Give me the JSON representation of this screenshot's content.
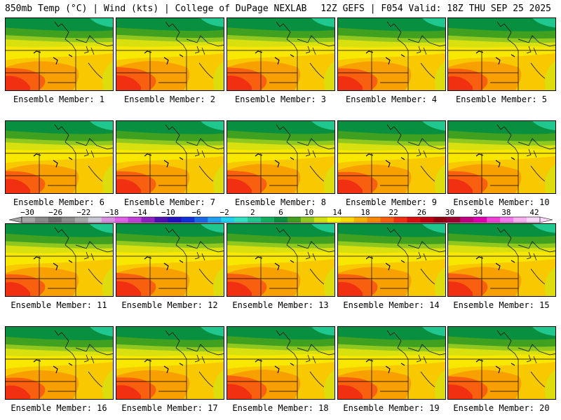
{
  "header": {
    "left_title": "850mb Temp (°C) | Wind (kts) | College of DuPage NEXLAB",
    "right_title": "12Z GEFS | F054 Valid: 18Z THU SEP 25 2025"
  },
  "members": [
    {
      "label": "Ensemble Member: 1",
      "warmth": 0.62
    },
    {
      "label": "Ensemble Member: 2",
      "warmth": 0.7
    },
    {
      "label": "Ensemble Member: 3",
      "warmth": 0.66
    },
    {
      "label": "Ensemble Member: 4",
      "warmth": 0.58
    },
    {
      "label": "Ensemble Member: 5",
      "warmth": 0.55
    },
    {
      "label": "Ensemble Member: 6",
      "warmth": 0.6
    },
    {
      "label": "Ensemble Member: 7",
      "warmth": 0.57
    },
    {
      "label": "Ensemble Member: 8",
      "warmth": 0.64
    },
    {
      "label": "Ensemble Member: 9",
      "warmth": 0.5
    },
    {
      "label": "Ensemble Member: 10",
      "warmth": 0.59
    },
    {
      "label": "Ensemble Member: 11",
      "warmth": 0.56
    },
    {
      "label": "Ensemble Member: 12",
      "warmth": 0.68
    },
    {
      "label": "Ensemble Member: 13",
      "warmth": 0.63
    },
    {
      "label": "Ensemble Member: 14",
      "warmth": 0.58
    },
    {
      "label": "Ensemble Member: 15",
      "warmth": 0.66
    },
    {
      "label": "Ensemble Member: 16",
      "warmth": 0.5
    },
    {
      "label": "Ensemble Member: 17",
      "warmth": 0.54
    },
    {
      "label": "Ensemble Member: 18",
      "warmth": 0.72
    },
    {
      "label": "Ensemble Member: 19",
      "warmth": 0.56
    },
    {
      "label": "Ensemble Member: 20",
      "warmth": 0.64
    }
  ],
  "colorbar": {
    "ticks": [
      -30,
      -26,
      -22,
      -18,
      -14,
      -10,
      -6,
      -2,
      2,
      6,
      10,
      14,
      18,
      22,
      26,
      30,
      34,
      38,
      42
    ],
    "colors": [
      "#a6a6a6",
      "#8a8a8a",
      "#6e6e6e",
      "#8c8c8c",
      "#a8a8a8",
      "#c8c8d8",
      "#d890e0",
      "#e060e8",
      "#c040d8",
      "#9020c0",
      "#5010b0",
      "#2010c0",
      "#1030d8",
      "#1868e8",
      "#20a0f0",
      "#20d0f0",
      "#30e0c0",
      "#20c890",
      "#10b060",
      "#089040",
      "#40a020",
      "#90c820",
      "#d0e010",
      "#f8f800",
      "#f8d800",
      "#f8b000",
      "#f88800",
      "#f86010",
      "#f03010",
      "#d81010",
      "#c00010",
      "#900010",
      "#a00030",
      "#c00080",
      "#e000b0",
      "#f040d8",
      "#f878f0",
      "#f8b0f0",
      "#f8d8f8"
    ]
  }
}
